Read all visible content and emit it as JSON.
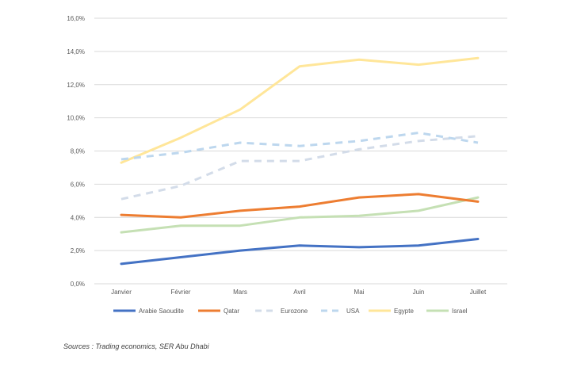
{
  "chart_data": {
    "type": "line",
    "title": "",
    "xlabel": "",
    "ylabel": "",
    "categories": [
      "Janvier",
      "Février",
      "Mars",
      "Avril",
      "Mai",
      "Juin",
      "Juillet"
    ],
    "ylim": [
      0,
      16
    ],
    "yticks": [
      0,
      2,
      4,
      6,
      8,
      10,
      12,
      14,
      16
    ],
    "ytick_labels": [
      "0,0%",
      "2,0%",
      "4,0%",
      "6,0%",
      "8,0%",
      "10,0%",
      "12,0%",
      "14,0%",
      "16,0%"
    ],
    "grid": true,
    "legend_position": "bottom",
    "series": [
      {
        "name": "Arabie Saoudite",
        "color": "#4472c4",
        "style": "solid",
        "values": [
          1.2,
          1.6,
          2.0,
          2.3,
          2.2,
          2.3,
          2.7
        ]
      },
      {
        "name": "Qatar",
        "color": "#ed7d31",
        "style": "solid",
        "values": [
          4.15,
          4.0,
          4.4,
          4.65,
          5.2,
          5.4,
          4.95
        ]
      },
      {
        "name": "Eurozone",
        "color": "#d3dce9",
        "style": "dashed",
        "values": [
          5.1,
          5.9,
          7.4,
          7.4,
          8.1,
          8.6,
          8.9
        ]
      },
      {
        "name": "USA",
        "color": "#bdd7ee",
        "style": "dashed",
        "values": [
          7.5,
          7.9,
          8.5,
          8.3,
          8.6,
          9.1,
          8.5
        ]
      },
      {
        "name": "Egypte",
        "color": "#ffe699",
        "style": "solid",
        "values": [
          7.3,
          8.8,
          10.5,
          13.1,
          13.5,
          13.2,
          13.6
        ]
      },
      {
        "name": "Israel",
        "color": "#c5e0b4",
        "style": "solid",
        "values": [
          3.1,
          3.5,
          3.5,
          4.0,
          4.1,
          4.4,
          5.2
        ]
      }
    ]
  },
  "source_note": "Sources : Trading economics, SER Abu Dhabi"
}
